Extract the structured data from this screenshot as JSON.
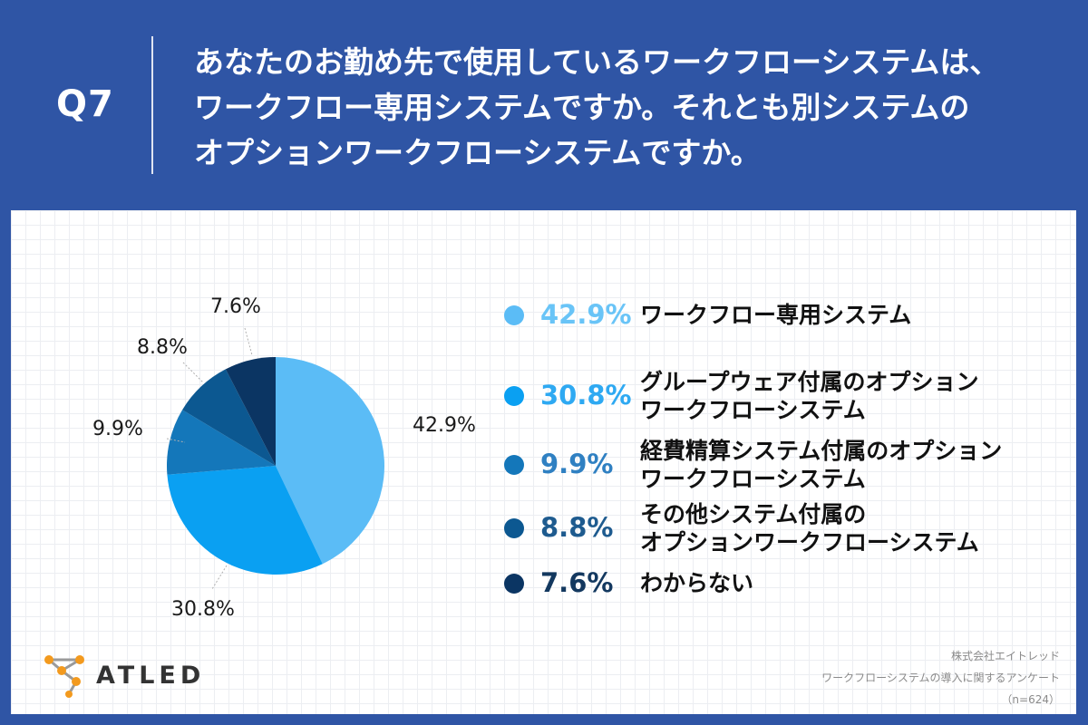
{
  "header": {
    "q_label": "Q7",
    "question_lines": [
      "あなたのお勤め先で使用しているワークフローシステムは、",
      "ワークフロー専用システムですか。それとも別システムの",
      "オプションワークフローシステムですか。"
    ]
  },
  "chart_data": {
    "type": "pie",
    "unit": "%",
    "start": "12 o'clock",
    "direction": "clockwise",
    "slices": [
      {
        "value": 42.9,
        "value_label": "42.9%",
        "label_lines": [
          "ワークフロー専用システム"
        ],
        "color": "#5bbcf6"
      },
      {
        "value": 30.8,
        "value_label": "30.8%",
        "label_lines": [
          "グループウェア付属のオプション",
          "ワークフローシステム"
        ],
        "color": "#0aa0f2"
      },
      {
        "value": 9.9,
        "value_label": "9.9%",
        "label_lines": [
          "経費精算システム付属のオプション",
          "ワークフローシステム"
        ],
        "color": "#1477ba"
      },
      {
        "value": 8.8,
        "value_label": "8.8%",
        "label_lines": [
          "その他システム付属の",
          "オプションワークフローシステム"
        ],
        "color": "#0c5891"
      },
      {
        "value": 7.6,
        "value_label": "7.6%",
        "label_lines": [
          "わからない"
        ],
        "color": "#0b3563"
      }
    ],
    "legend_position": "right"
  },
  "legend_pct_colors": [
    "#69c4f7",
    "#2ea9f2",
    "#2f80c2",
    "#1e5b8f",
    "#13385f"
  ],
  "logo": {
    "text": "ATLED",
    "icon": "atled-molecule-icon",
    "node_color": "#f39a1e",
    "link_color": "#9a9a9a"
  },
  "source": {
    "lines": [
      "株式会社エイトレッド",
      "ワークフローシステムの導入に関するアンケート",
      "（n=624）"
    ]
  }
}
